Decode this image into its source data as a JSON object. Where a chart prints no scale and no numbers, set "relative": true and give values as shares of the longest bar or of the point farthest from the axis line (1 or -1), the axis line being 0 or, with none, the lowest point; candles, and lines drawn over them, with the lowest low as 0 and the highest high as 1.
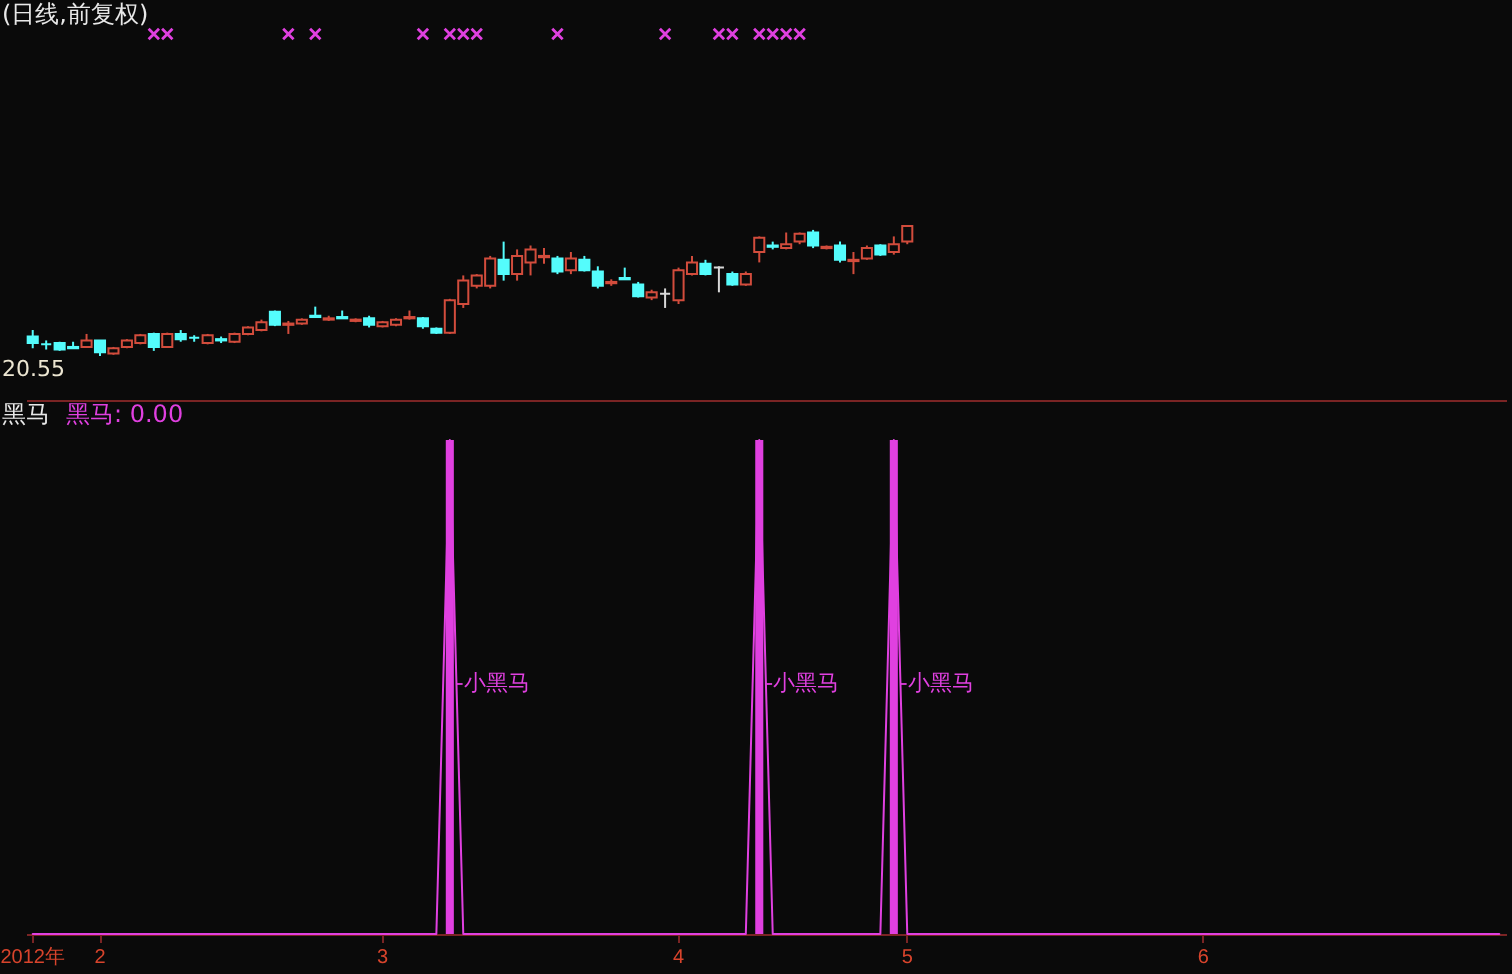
{
  "chart_data": [
    {
      "type": "candlestick",
      "title": "(日线,前复权)",
      "relative": true,
      "categories": [
        null,
        null,
        null,
        null,
        null,
        null,
        null,
        null,
        null,
        null,
        null,
        null,
        null,
        null,
        null,
        null,
        null,
        null,
        null,
        null,
        null,
        null,
        null,
        null,
        null,
        null,
        null,
        null,
        null,
        null,
        null,
        null,
        null,
        null,
        null,
        null,
        null,
        null,
        null,
        null,
        null,
        null,
        null,
        null,
        null,
        null,
        null,
        null,
        null,
        null,
        null,
        null,
        null,
        null,
        null,
        null,
        null,
        null,
        null,
        null,
        null,
        null,
        null,
        null,
        null,
        null,
        null,
        null,
        null,
        null,
        null,
        null,
        null,
        null,
        null,
        null,
        null,
        null,
        null,
        null,
        null,
        null,
        null,
        null,
        null,
        null,
        null,
        null,
        null,
        null,
        null,
        null,
        null,
        null,
        null,
        null,
        null,
        null,
        null,
        null,
        null,
        null,
        null,
        null,
        null,
        null,
        null,
        null,
        null,
        null
      ],
      "ohlc": [
        [
          0.15,
          0.2,
          0.06,
          0.1
        ],
        [
          0.09,
          0.12,
          0.05,
          0.09
        ],
        [
          0.1,
          0.11,
          0.04,
          0.05
        ],
        [
          0.07,
          0.11,
          0.06,
          0.06
        ],
        [
          0.07,
          0.17,
          0.07,
          0.12
        ],
        [
          0.12,
          0.12,
          0,
          0.03
        ],
        [
          0.02,
          0.07,
          0.01,
          0.06
        ],
        [
          0.07,
          0.13,
          0.06,
          0.12
        ],
        [
          0.1,
          0.17,
          0.09,
          0.16
        ],
        [
          0.17,
          0.18,
          0.04,
          0.07
        ],
        [
          0.07,
          0.18,
          0.07,
          0.17
        ],
        [
          0.17,
          0.2,
          0.11,
          0.13
        ],
        [
          0.14,
          0.16,
          0.11,
          0.14
        ],
        [
          0.1,
          0.17,
          0.09,
          0.16
        ],
        [
          0.13,
          0.15,
          0.1,
          0.12
        ],
        [
          0.11,
          0.18,
          0.1,
          0.17
        ],
        [
          0.17,
          0.23,
          0.16,
          0.22
        ],
        [
          0.2,
          0.28,
          0.19,
          0.26
        ],
        [
          0.34,
          0.35,
          0.23,
          0.24
        ],
        [
          0.24,
          0.27,
          0.17,
          0.25
        ],
        [
          0.25,
          0.29,
          0.24,
          0.28
        ],
        [
          0.31,
          0.38,
          0.3,
          0.3
        ],
        [
          0.28,
          0.31,
          0.27,
          0.29
        ],
        [
          0.3,
          0.35,
          0.29,
          0.29
        ],
        [
          0.27,
          0.29,
          0.26,
          0.28
        ],
        [
          0.29,
          0.31,
          0.22,
          0.24
        ],
        [
          0.23,
          0.27,
          0.22,
          0.26
        ],
        [
          0.24,
          0.29,
          0.23,
          0.28
        ],
        [
          0.29,
          0.35,
          0.28,
          0.3
        ],
        [
          0.29,
          0.3,
          0.21,
          0.23
        ],
        [
          0.21,
          0.22,
          0.17,
          0.18
        ],
        [
          0.18,
          0.44,
          0.17,
          0.43
        ],
        [
          0.4,
          0.62,
          0.37,
          0.58
        ],
        [
          0.54,
          0.63,
          0.52,
          0.62
        ],
        [
          0.54,
          0.77,
          0.52,
          0.75
        ],
        [
          0.74,
          0.88,
          0.58,
          0.63
        ],
        [
          0.63,
          0.82,
          0.58,
          0.77
        ],
        [
          0.72,
          0.85,
          0.62,
          0.82
        ],
        [
          0.76,
          0.83,
          0.71,
          0.77
        ],
        [
          0.75,
          0.77,
          0.63,
          0.65
        ],
        [
          0.66,
          0.8,
          0.63,
          0.75
        ],
        [
          0.74,
          0.77,
          0.65,
          0.66
        ],
        [
          0.65,
          0.69,
          0.52,
          0.54
        ],
        [
          0.56,
          0.59,
          0.54,
          0.57
        ],
        [
          0.6,
          0.68,
          0.59,
          0.59
        ],
        [
          0.55,
          0.57,
          0.45,
          0.46
        ],
        [
          0.45,
          0.51,
          0.43,
          0.49
        ],
        [
          0.48,
          0.52,
          0.37,
          0.48
        ],
        [
          0.43,
          0.68,
          0.4,
          0.66
        ],
        [
          0.63,
          0.77,
          0.62,
          0.72
        ],
        [
          0.71,
          0.74,
          0.62,
          0.63
        ],
        [
          0.68,
          0.69,
          0.49,
          0.68
        ],
        [
          0.63,
          0.65,
          0.54,
          0.55
        ],
        [
          0.55,
          0.65,
          0.54,
          0.63
        ],
        [
          0.8,
          0.92,
          0.72,
          0.91
        ],
        [
          0.85,
          0.88,
          0.82,
          0.84
        ],
        [
          0.83,
          0.95,
          0.82,
          0.86
        ],
        [
          0.88,
          0.95,
          0.86,
          0.94
        ],
        [
          0.95,
          0.97,
          0.83,
          0.85
        ],
        [
          0.83,
          0.85,
          0.82,
          0.84
        ],
        [
          0.85,
          0.88,
          0.72,
          0.74
        ],
        [
          0.73,
          0.8,
          0.63,
          0.74
        ],
        [
          0.75,
          0.85,
          0.74,
          0.83
        ],
        [
          0.85,
          0.86,
          0.77,
          0.78
        ],
        [
          0.8,
          0.92,
          0.78,
          0.86
        ],
        [
          0.88,
          1,
          0.86,
          1
        ],
        null,
        null,
        null,
        null,
        null,
        null,
        null,
        null,
        null,
        null,
        null,
        null,
        null,
        null,
        null,
        null,
        null,
        null,
        null,
        null,
        null,
        null,
        null,
        null,
        null,
        null,
        null,
        null,
        null,
        null,
        null,
        null,
        null,
        null,
        null,
        null,
        null,
        null,
        null,
        null,
        null,
        null,
        null,
        null
      ],
      "colors": [
        "#54fcfc",
        "#54fcfc",
        "#54fcfc",
        "#54fcfc",
        "#d24c3c",
        "#54fcfc",
        "#d24c3c",
        "#d24c3c",
        "#d24c3c",
        "#54fcfc",
        "#d24c3c",
        "#54fcfc",
        "#54fcfc",
        "#d24c3c",
        "#54fcfc",
        "#d24c3c",
        "#d24c3c",
        "#d24c3c",
        "#54fcfc",
        "#d24c3c",
        "#d24c3c",
        "#54fcfc",
        "#d24c3c",
        "#54fcfc",
        "#d24c3c",
        "#54fcfc",
        "#d24c3c",
        "#d24c3c",
        "#d24c3c",
        "#54fcfc",
        "#54fcfc",
        "#d24c3c",
        "#d24c3c",
        "#d24c3c",
        "#d24c3c",
        "#54fcfc",
        "#d24c3c",
        "#d24c3c",
        "#d24c3c",
        "#54fcfc",
        "#d24c3c",
        "#54fcfc",
        "#54fcfc",
        "#d24c3c",
        "#54fcfc",
        "#54fcfc",
        "#d24c3c",
        "#d8d8d8",
        "#d24c3c",
        "#d24c3c",
        "#54fcfc",
        "#d8d8d8",
        "#54fcfc",
        "#d24c3c",
        "#d24c3c",
        "#54fcfc",
        "#d24c3c",
        "#d24c3c",
        "#54fcfc",
        "#d24c3c",
        "#54fcfc",
        "#d24c3c",
        "#d24c3c",
        "#54fcfc",
        "#d24c3c",
        "#d24c3c",
        null,
        null,
        null,
        null,
        null,
        null,
        null,
        null,
        null,
        null,
        null,
        null,
        null,
        null,
        null,
        null,
        null,
        null,
        null,
        null,
        null,
        null,
        null,
        null,
        null,
        null,
        null,
        null,
        null,
        null,
        null,
        null,
        null,
        null,
        null,
        null,
        null,
        null,
        null,
        null,
        null,
        null,
        null,
        null
      ],
      "annotations": [
        "20.55"
      ]
    },
    {
      "type": "line",
      "title": "黑马",
      "relative": true,
      "tick_labels": "x",
      "legend": "top left",
      "categories": [
        "2012年",
        null,
        null,
        null,
        null,
        "2",
        null,
        null,
        null,
        null,
        null,
        null,
        null,
        null,
        null,
        null,
        null,
        null,
        null,
        null,
        null,
        null,
        null,
        null,
        null,
        null,
        "3",
        null,
        null,
        null,
        null,
        null,
        null,
        null,
        null,
        null,
        null,
        null,
        null,
        null,
        null,
        null,
        null,
        null,
        null,
        null,
        null,
        null,
        "4",
        null,
        null,
        null,
        null,
        null,
        null,
        null,
        null,
        null,
        null,
        null,
        null,
        null,
        null,
        null,
        null,
        "5",
        null,
        null,
        null,
        null,
        null,
        null,
        null,
        null,
        null,
        null,
        null,
        null,
        null,
        null,
        null,
        null,
        null,
        null,
        null,
        null,
        null,
        "6",
        null,
        null,
        null,
        null,
        null,
        null,
        null,
        null,
        null,
        null,
        null,
        null,
        null,
        null,
        null,
        null,
        null,
        null,
        null,
        null,
        null,
        null
      ],
      "series": [
        {
          "name": "黑马: 0.00",
          "type": "line",
          "color": "#e040e0",
          "values": [
            0,
            0,
            0,
            0,
            0,
            0,
            0,
            0,
            0,
            0,
            0,
            0,
            0,
            0,
            0,
            0,
            0,
            0,
            0,
            0,
            0,
            0,
            0,
            0,
            0,
            0,
            0,
            0,
            0,
            0,
            0,
            1,
            0,
            0,
            0,
            0,
            0,
            0,
            0,
            0,
            0,
            0,
            0,
            0,
            0,
            0,
            0,
            0,
            0,
            0,
            0,
            0,
            0,
            0,
            1,
            0,
            0,
            0,
            0,
            0,
            0,
            0,
            0,
            0,
            1,
            0,
            0,
            0,
            0,
            0,
            0,
            0,
            0,
            0,
            0,
            0,
            0,
            0,
            0,
            0,
            0,
            0,
            0,
            0,
            0,
            0,
            0,
            0,
            0,
            0,
            0,
            0,
            0,
            0,
            0,
            0,
            0,
            0,
            0,
            0,
            0,
            0,
            0,
            0,
            0,
            0,
            0,
            0,
            0,
            0
          ]
        },
        {
          "type": "bar",
          "color": "#e040e0",
          "values": [
            null,
            null,
            null,
            null,
            null,
            null,
            null,
            null,
            null,
            null,
            null,
            null,
            null,
            null,
            null,
            null,
            null,
            null,
            null,
            null,
            null,
            null,
            null,
            null,
            null,
            null,
            null,
            null,
            null,
            null,
            null,
            1,
            null,
            null,
            null,
            null,
            null,
            null,
            null,
            null,
            null,
            null,
            null,
            null,
            null,
            null,
            null,
            null,
            null,
            null,
            null,
            null,
            null,
            null,
            1,
            null,
            null,
            null,
            null,
            null,
            null,
            null,
            null,
            null,
            1,
            null,
            null,
            null,
            null,
            null,
            null,
            null,
            null,
            null,
            null,
            null,
            null,
            null,
            null,
            null,
            null,
            null,
            null,
            null,
            null,
            null,
            null,
            null,
            null,
            null,
            null,
            null,
            null,
            null,
            null,
            null,
            null,
            null,
            null,
            null,
            null,
            null,
            null,
            null,
            null,
            null,
            null,
            null,
            null,
            null
          ]
        }
      ],
      "annotations": [
        "-小黑马",
        "-小黑马",
        "-小黑马"
      ]
    }
  ]
}
